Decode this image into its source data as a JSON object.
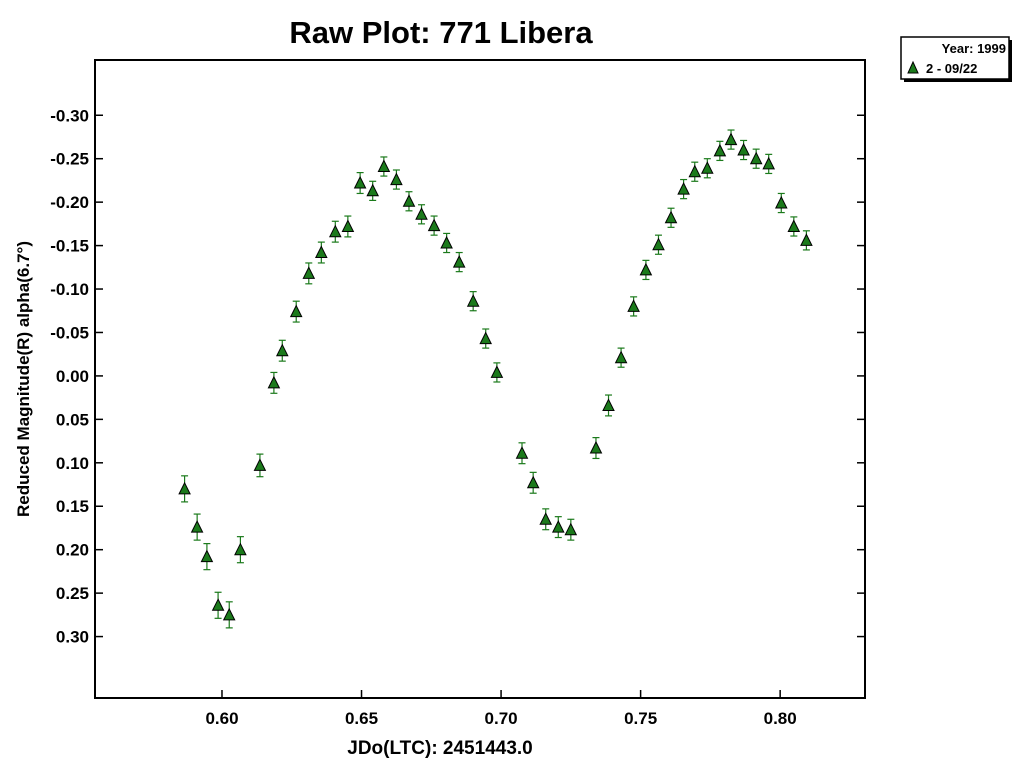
{
  "chart_data": {
    "type": "scatter",
    "title": "Raw Plot: 771 Libera",
    "xlabel": "JDo(LTC): 2451443.0",
    "ylabel": "Reduced Magnitude(R) alpha(6.7°)",
    "xlim": [
      0.5545,
      0.8304
    ],
    "ylim": [
      0.3707,
      -0.3636
    ],
    "y_inverted": true,
    "x_ticks": [
      0.6,
      0.65,
      0.7,
      0.75,
      0.8
    ],
    "x_tick_labels": [
      "0.60",
      "0.65",
      "0.70",
      "0.75",
      "0.80"
    ],
    "y_ticks": [
      -0.3,
      -0.25,
      -0.2,
      -0.15,
      -0.1,
      -0.05,
      0.0,
      0.05,
      0.1,
      0.15,
      0.2,
      0.25,
      0.3
    ],
    "y_tick_labels": [
      "-0.30",
      "-0.25",
      "-0.20",
      "-0.15",
      "-0.10",
      "-0.05",
      "0.00",
      "0.05",
      "0.10",
      "0.15",
      "0.20",
      "0.25",
      "0.30"
    ],
    "grid": false,
    "legend": {
      "placement": "top-right, outside plot",
      "header": "Year: 1999",
      "entries": [
        "2 - 09/22"
      ]
    },
    "marker": {
      "shape": "triangle-up",
      "fill": "#1b7a1b",
      "stroke": "#000000",
      "error_bar_color": "#1b7a1b"
    },
    "series": [
      {
        "name": "2 - 09/22",
        "points": [
          {
            "x": 0.5866,
            "y": 0.13,
            "err": 0.015
          },
          {
            "x": 0.5911,
            "y": 0.174,
            "err": 0.015
          },
          {
            "x": 0.5946,
            "y": 0.208,
            "err": 0.015
          },
          {
            "x": 0.5986,
            "y": 0.264,
            "err": 0.015
          },
          {
            "x": 0.6026,
            "y": 0.275,
            "err": 0.015
          },
          {
            "x": 0.6066,
            "y": 0.2,
            "err": 0.015
          },
          {
            "x": 0.6136,
            "y": 0.103,
            "err": 0.013
          },
          {
            "x": 0.6186,
            "y": 0.008,
            "err": 0.012
          },
          {
            "x": 0.6216,
            "y": -0.029,
            "err": 0.012
          },
          {
            "x": 0.6266,
            "y": -0.074,
            "err": 0.012
          },
          {
            "x": 0.6311,
            "y": -0.118,
            "err": 0.012
          },
          {
            "x": 0.6356,
            "y": -0.142,
            "err": 0.012
          },
          {
            "x": 0.6406,
            "y": -0.166,
            "err": 0.012
          },
          {
            "x": 0.6451,
            "y": -0.172,
            "err": 0.012
          },
          {
            "x": 0.6495,
            "y": -0.222,
            "err": 0.012
          },
          {
            "x": 0.654,
            "y": -0.213,
            "err": 0.011
          },
          {
            "x": 0.658,
            "y": -0.241,
            "err": 0.011
          },
          {
            "x": 0.6625,
            "y": -0.226,
            "err": 0.011
          },
          {
            "x": 0.667,
            "y": -0.201,
            "err": 0.011
          },
          {
            "x": 0.6715,
            "y": -0.186,
            "err": 0.011
          },
          {
            "x": 0.676,
            "y": -0.173,
            "err": 0.011
          },
          {
            "x": 0.6805,
            "y": -0.153,
            "err": 0.011
          },
          {
            "x": 0.685,
            "y": -0.131,
            "err": 0.011
          },
          {
            "x": 0.69,
            "y": -0.086,
            "err": 0.011
          },
          {
            "x": 0.6945,
            "y": -0.043,
            "err": 0.011
          },
          {
            "x": 0.6985,
            "y": -0.004,
            "err": 0.011
          },
          {
            "x": 0.7075,
            "y": 0.089,
            "err": 0.012
          },
          {
            "x": 0.7115,
            "y": 0.123,
            "err": 0.012
          },
          {
            "x": 0.716,
            "y": 0.165,
            "err": 0.012
          },
          {
            "x": 0.7205,
            "y": 0.174,
            "err": 0.012
          },
          {
            "x": 0.725,
            "y": 0.177,
            "err": 0.012
          },
          {
            "x": 0.734,
            "y": 0.083,
            "err": 0.012
          },
          {
            "x": 0.7385,
            "y": 0.034,
            "err": 0.012
          },
          {
            "x": 0.743,
            "y": -0.021,
            "err": 0.011
          },
          {
            "x": 0.7475,
            "y": -0.08,
            "err": 0.011
          },
          {
            "x": 0.7519,
            "y": -0.122,
            "err": 0.011
          },
          {
            "x": 0.7564,
            "y": -0.151,
            "err": 0.011
          },
          {
            "x": 0.7609,
            "y": -0.182,
            "err": 0.011
          },
          {
            "x": 0.7654,
            "y": -0.215,
            "err": 0.011
          },
          {
            "x": 0.7694,
            "y": -0.235,
            "err": 0.011
          },
          {
            "x": 0.7739,
            "y": -0.239,
            "err": 0.011
          },
          {
            "x": 0.7784,
            "y": -0.259,
            "err": 0.011
          },
          {
            "x": 0.7824,
            "y": -0.272,
            "err": 0.011
          },
          {
            "x": 0.7869,
            "y": -0.26,
            "err": 0.011
          },
          {
            "x": 0.7914,
            "y": -0.25,
            "err": 0.011
          },
          {
            "x": 0.7959,
            "y": -0.244,
            "err": 0.011
          },
          {
            "x": 0.8004,
            "y": -0.199,
            "err": 0.011
          },
          {
            "x": 0.8049,
            "y": -0.172,
            "err": 0.011
          },
          {
            "x": 0.8094,
            "y": -0.156,
            "err": 0.011
          }
        ]
      }
    ]
  }
}
